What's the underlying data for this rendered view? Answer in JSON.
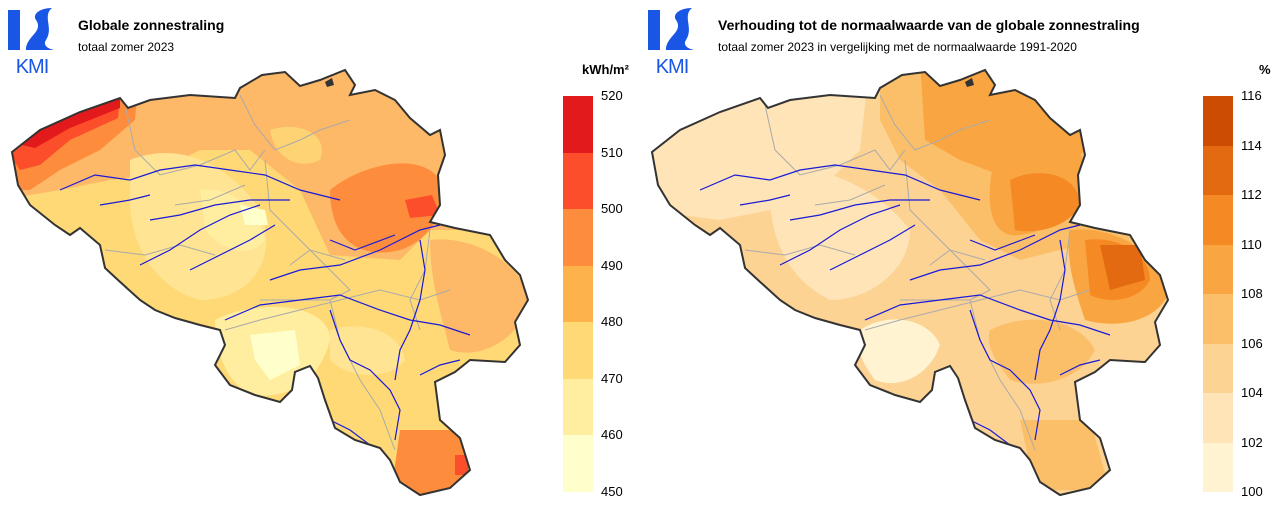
{
  "panels": [
    {
      "logo_text": "KMI",
      "title": "Globale zonnestraling",
      "subtitle": "totaal zomer 2023",
      "unit": "kWh/m²",
      "legend_ticks": [
        "520",
        "510",
        "500",
        "490",
        "480",
        "470",
        "460",
        "450"
      ],
      "legend_colors": [
        "#e31a1c",
        "#fc4e2a",
        "#fd8d3c",
        "#feb24c",
        "#fed976",
        "#ffeda0",
        "#ffffcc"
      ]
    },
    {
      "logo_text": "KMI",
      "title": "Verhouding tot de normaalwaarde van de globale zonnestraling",
      "subtitle": "totaal zomer 2023 in vergelijking met de normaalwaarde 1991-2020",
      "unit": "%",
      "legend_ticks": [
        "116",
        "114",
        "112",
        "110",
        "108",
        "106",
        "104",
        "102",
        "100"
      ],
      "legend_colors": [
        "#cc4c02",
        "#e36a10",
        "#f58a25",
        "#f9a642",
        "#fbbf6a",
        "#fdd394",
        "#fee4b6",
        "#fff3d2"
      ]
    }
  ],
  "colors": {
    "logo_blue": "#1a56e6",
    "border": "#333333",
    "river": "#1a1ad8",
    "admin_lines": "#aaaaaa"
  }
}
